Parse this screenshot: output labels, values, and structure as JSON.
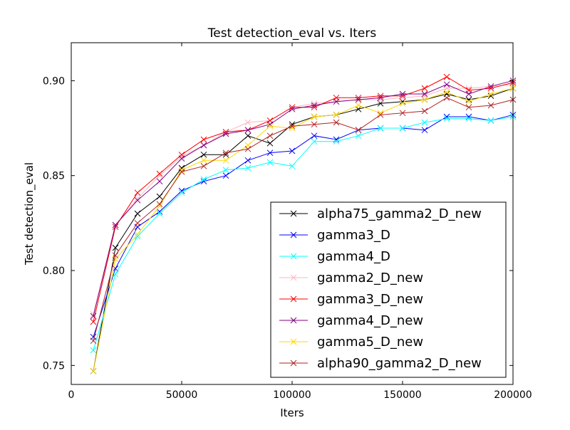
{
  "chart_data": {
    "type": "line",
    "title": "Test detection_eval  vs. Iters",
    "xlabel": "Iters",
    "ylabel": "Test detection_eval",
    "xlim": [
      0,
      200000
    ],
    "ylim": [
      0.74,
      0.92
    ],
    "xticks": [
      0,
      50000,
      100000,
      150000,
      200000
    ],
    "xtick_labels": [
      "0",
      "50000",
      "100000",
      "150000",
      "200000"
    ],
    "yticks": [
      0.75,
      0.8,
      0.85,
      0.9
    ],
    "ytick_labels": [
      "0.75",
      "0.80",
      "0.85",
      "0.90"
    ],
    "grid": false,
    "legend_position": "lower-right",
    "marker": "x",
    "x": [
      10000,
      20000,
      30000,
      40000,
      50000,
      60000,
      70000,
      80000,
      90000,
      100000,
      110000,
      120000,
      130000,
      140000,
      150000,
      160000,
      170000,
      180000,
      190000,
      200000
    ],
    "series": [
      {
        "name": "alpha75_gamma2_D_new",
        "color": "#000000",
        "values": [
          0.747,
          0.812,
          0.83,
          0.839,
          0.854,
          0.861,
          0.861,
          0.871,
          0.867,
          0.877,
          0.881,
          0.882,
          0.885,
          0.888,
          0.889,
          0.89,
          0.893,
          0.89,
          0.892,
          0.896
        ]
      },
      {
        "name": "gamma3_D",
        "color": "#0000ff",
        "values": [
          0.765,
          0.801,
          0.823,
          0.831,
          0.842,
          0.847,
          0.85,
          0.858,
          0.862,
          0.863,
          0.871,
          0.869,
          0.874,
          0.875,
          0.875,
          0.874,
          0.881,
          0.881,
          0.879,
          0.882
        ]
      },
      {
        "name": "gamma4_D",
        "color": "#00ffff",
        "values": [
          0.758,
          0.798,
          0.818,
          0.83,
          0.841,
          0.848,
          0.853,
          0.854,
          0.857,
          0.855,
          0.868,
          0.868,
          0.871,
          0.875,
          0.875,
          0.878,
          0.88,
          0.88,
          0.879,
          0.881
        ]
      },
      {
        "name": "gamma2_D_new",
        "color": "#ffb6c1",
        "values": [
          0.777,
          0.824,
          0.838,
          0.85,
          0.86,
          0.866,
          0.873,
          0.878,
          0.879,
          0.886,
          0.888,
          0.889,
          0.89,
          0.89,
          0.891,
          0.892,
          0.896,
          0.896,
          0.897,
          0.898
        ]
      },
      {
        "name": "gamma3_D_new",
        "color": "#ff0000",
        "values": [
          0.773,
          0.823,
          0.841,
          0.851,
          0.861,
          0.869,
          0.873,
          0.874,
          0.879,
          0.886,
          0.886,
          0.891,
          0.891,
          0.892,
          0.892,
          0.896,
          0.902,
          0.895,
          0.896,
          0.899
        ]
      },
      {
        "name": "gamma4_D_new",
        "color": "#800080",
        "values": [
          0.776,
          0.824,
          0.837,
          0.847,
          0.859,
          0.866,
          0.872,
          0.874,
          0.877,
          0.885,
          0.887,
          0.889,
          0.89,
          0.891,
          0.893,
          0.893,
          0.898,
          0.893,
          0.897,
          0.9
        ]
      },
      {
        "name": "gamma5_D_new",
        "color": "#ffd700",
        "values": [
          0.747,
          0.806,
          0.819,
          0.834,
          0.853,
          0.858,
          0.858,
          0.866,
          0.876,
          0.875,
          0.881,
          0.882,
          0.887,
          0.883,
          0.888,
          0.89,
          0.894,
          0.889,
          0.893,
          0.896
        ]
      },
      {
        "name": "alpha90_gamma2_D_new",
        "color": "#b22222",
        "values": [
          0.763,
          0.808,
          0.825,
          0.835,
          0.852,
          0.855,
          0.862,
          0.864,
          0.871,
          0.876,
          0.877,
          0.878,
          0.874,
          0.882,
          0.883,
          0.884,
          0.891,
          0.886,
          0.887,
          0.89
        ]
      }
    ]
  }
}
